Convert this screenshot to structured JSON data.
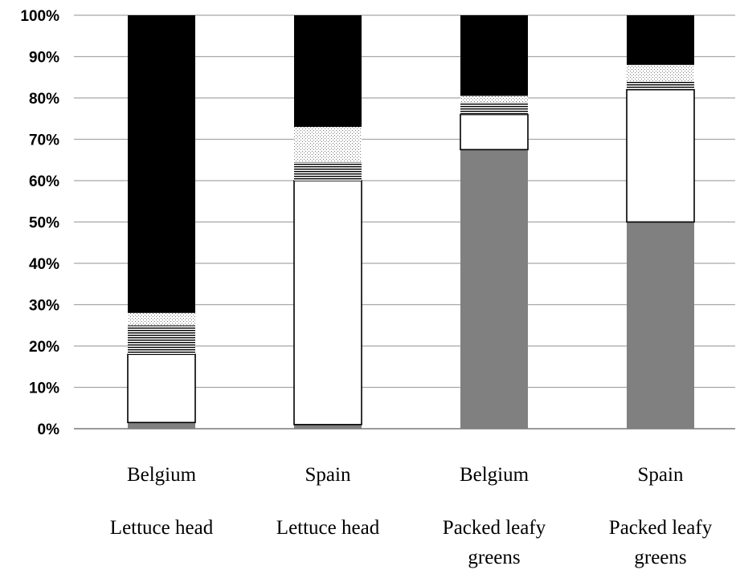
{
  "chart_data": {
    "type": "bar",
    "stacked": true,
    "percent": true,
    "title": "",
    "xlabel": "",
    "ylabel": "",
    "ylim": [
      0,
      100
    ],
    "y_ticks": [
      "0%",
      "10%",
      "20%",
      "30%",
      "40%",
      "50%",
      "60%",
      "70%",
      "80%",
      "90%",
      "100%"
    ],
    "grid": "horizontal",
    "legend": "none",
    "categories": [
      {
        "country": "Belgium",
        "product": "Lettuce head"
      },
      {
        "country": "Spain",
        "product": "Lettuce head"
      },
      {
        "country": "Belgium",
        "product": "Packed leafy greens"
      },
      {
        "country": "Spain",
        "product": "Packed leafy greens"
      }
    ],
    "series": [
      {
        "fill": "gray",
        "color": "#808080",
        "values": [
          1.5,
          1,
          67.5,
          50
        ]
      },
      {
        "fill": "white",
        "color": "#ffffff",
        "values": [
          16.5,
          59,
          8.5,
          32
        ]
      },
      {
        "fill": "horizontal-lines",
        "color": "#000000",
        "values": [
          7,
          4.5,
          3,
          2
        ]
      },
      {
        "fill": "dotted",
        "color": "#999999",
        "values": [
          3,
          8.5,
          1.5,
          4
        ]
      },
      {
        "fill": "black",
        "color": "#000000",
        "values": [
          72,
          27,
          19.5,
          12
        ]
      }
    ]
  }
}
